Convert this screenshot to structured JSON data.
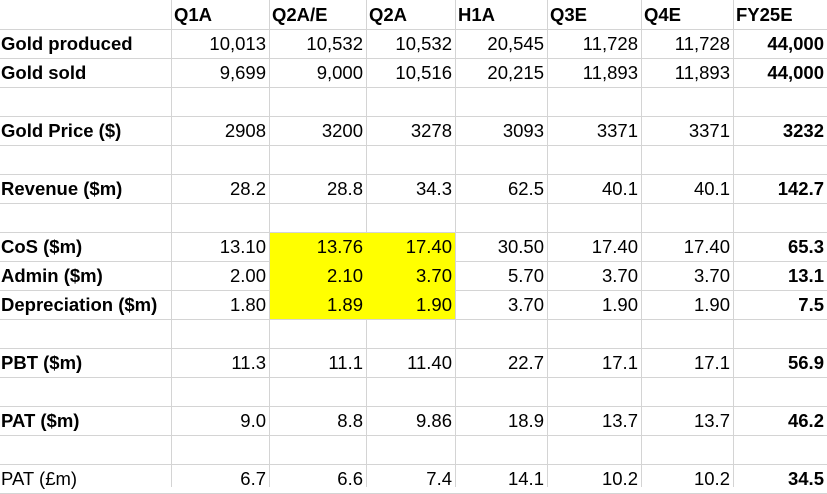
{
  "columns": [
    "Q1A",
    "Q2A/E",
    "Q2A",
    "H1A",
    "Q3E",
    "Q4E",
    "FY25E"
  ],
  "rows": [
    {
      "label": "Gold produced",
      "values": [
        "10,013",
        "10,532",
        "10,532",
        "20,545",
        "11,728",
        "11,728",
        "44,000"
      ],
      "bold_label": true
    },
    {
      "label": "Gold sold",
      "values": [
        "9,699",
        "9,000",
        "10,516",
        "20,215",
        "11,893",
        "11,893",
        "44,000"
      ],
      "bold_label": true
    },
    {
      "label": "",
      "values": [
        "",
        "",
        "",
        "",
        "",
        "",
        ""
      ],
      "bold_label": true
    },
    {
      "label": "Gold Price ($)",
      "values": [
        "2908",
        "3200",
        "3278",
        "3093",
        "3371",
        "3371",
        "3232"
      ],
      "bold_label": true
    },
    {
      "label": "",
      "values": [
        "",
        "",
        "",
        "",
        "",
        "",
        ""
      ],
      "bold_label": true
    },
    {
      "label": "Revenue ($m)",
      "values": [
        "28.2",
        "28.8",
        "34.3",
        "62.5",
        "40.1",
        "40.1",
        "142.7"
      ],
      "bold_label": true
    },
    {
      "label": "",
      "values": [
        "",
        "",
        "",
        "",
        "",
        "",
        ""
      ],
      "bold_label": true
    },
    {
      "label": "CoS ($m)",
      "values": [
        "13.10",
        "13.76",
        "17.40",
        "30.50",
        "17.40",
        "17.40",
        "65.3"
      ],
      "bold_label": true
    },
    {
      "label": "Admin ($m)",
      "values": [
        "2.00",
        "2.10",
        "3.70",
        "5.70",
        "3.70",
        "3.70",
        "13.1"
      ],
      "bold_label": true
    },
    {
      "label": "Depreciation ($m)",
      "values": [
        "1.80",
        "1.89",
        "1.90",
        "3.70",
        "1.90",
        "1.90",
        "7.5"
      ],
      "bold_label": true
    },
    {
      "label": "",
      "values": [
        "",
        "",
        "",
        "",
        "",
        "",
        ""
      ],
      "bold_label": true
    },
    {
      "label": "PBT ($m)",
      "values": [
        "11.3",
        "11.1",
        "11.40",
        "22.7",
        "17.1",
        "17.1",
        "56.9"
      ],
      "bold_label": true
    },
    {
      "label": "",
      "values": [
        "",
        "",
        "",
        "",
        "",
        "",
        ""
      ],
      "bold_label": true
    },
    {
      "label": "PAT ($m)",
      "values": [
        "9.0",
        "8.8",
        "9.86",
        "18.9",
        "13.7",
        "13.7",
        "46.2"
      ],
      "bold_label": true
    },
    {
      "label": "",
      "values": [
        "",
        "",
        "",
        "",
        "",
        "",
        ""
      ],
      "bold_label": true
    },
    {
      "label": "PAT (£m)",
      "values": [
        "6.7",
        "6.6",
        "7.4",
        "14.1",
        "10.2",
        "10.2",
        "34.5"
      ],
      "bold_label": false
    }
  ],
  "highlight_color": "#ffff00"
}
